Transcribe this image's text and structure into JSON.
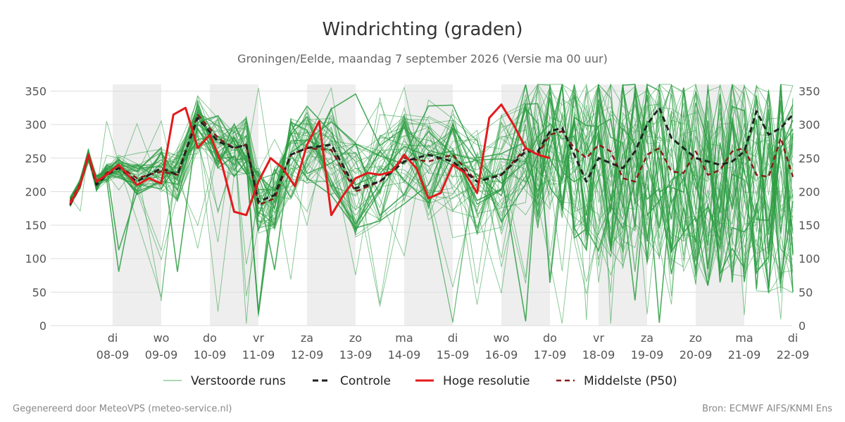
{
  "chart_data": {
    "type": "line",
    "title": "Windrichting (graden)",
    "subtitle": "Groningen/Eelde, maandag  7 september 2026 (Versie ma 00 uur)",
    "ylim": [
      0,
      360
    ],
    "y_ticks": [
      0,
      50,
      100,
      150,
      200,
      250,
      300,
      350
    ],
    "x_range_days": [
      -0.87,
      14.0
    ],
    "x_ticks": [
      {
        "day": "di",
        "date": "08-09"
      },
      {
        "day": "wo",
        "date": "09-09"
      },
      {
        "day": "do",
        "date": "10-09"
      },
      {
        "day": "vr",
        "date": "11-09"
      },
      {
        "day": "za",
        "date": "12-09"
      },
      {
        "day": "zo",
        "date": "13-09"
      },
      {
        "day": "ma",
        "date": "14-09"
      },
      {
        "day": "di",
        "date": "15-09"
      },
      {
        "day": "wo",
        "date": "16-09"
      },
      {
        "day": "do",
        "date": "17-09"
      },
      {
        "day": "vr",
        "date": "18-09"
      },
      {
        "day": "za",
        "date": "19-09"
      },
      {
        "day": "zo",
        "date": "20-09"
      },
      {
        "day": "ma",
        "date": "21-09"
      },
      {
        "day": "di",
        "date": "22-09"
      }
    ],
    "weekend_shading": true,
    "shaded_days": [
      0,
      2,
      4,
      6,
      8,
      10,
      12
    ],
    "grid": true,
    "legend_position": "bottom",
    "colors": {
      "ensemble": "#2e9e44",
      "control": "#222222",
      "hires": "#e31a1c",
      "p50": "#8b1a1a",
      "shade": "#eeeeee",
      "grid": "#dddddd"
    },
    "series": [
      {
        "name": "Controle",
        "style": "dashed",
        "x": [
          -0.875,
          -0.667,
          -0.5,
          -0.333,
          -0.125,
          0.125,
          0.5,
          1.0,
          1.333,
          1.75,
          2.167,
          2.5,
          2.75,
          3.0,
          3.333,
          3.667,
          4.0,
          4.5,
          5.0,
          5.5,
          6.0,
          6.5,
          7.0,
          7.5,
          8.0,
          8.5,
          8.75,
          9.0,
          9.25,
          9.5,
          9.75,
          10.0,
          10.5,
          10.75,
          11.0,
          11.25,
          11.5,
          12.0,
          12.5,
          12.75,
          13.0,
          13.25,
          13.5,
          13.75,
          14.0
        ],
        "y": [
          180,
          210,
          255,
          210,
          225,
          235,
          215,
          235,
          225,
          310,
          275,
          265,
          270,
          185,
          195,
          255,
          265,
          270,
          205,
          215,
          245,
          255,
          245,
          215,
          225,
          260,
          260,
          290,
          295,
          255,
          215,
          250,
          235,
          260,
          300,
          325,
          280,
          250,
          240,
          245,
          260,
          320,
          285,
          295,
          315
        ]
      },
      {
        "name": "Hoge resolutie",
        "style": "solid",
        "x": [
          -0.875,
          -0.667,
          -0.5,
          -0.333,
          -0.125,
          0.125,
          0.5,
          0.75,
          1.0,
          1.25,
          1.5,
          1.75,
          2.0,
          2.25,
          2.5,
          2.75,
          3.0,
          3.25,
          3.5,
          3.75,
          4.0,
          4.25,
          4.5,
          4.75,
          5.0,
          5.25,
          5.5,
          5.75,
          6.0,
          6.25,
          6.5,
          6.75,
          7.0,
          7.25,
          7.5,
          7.75,
          8.0,
          8.25,
          8.5,
          8.75,
          9.0
        ],
        "y": [
          182,
          210,
          255,
          215,
          225,
          240,
          210,
          220,
          212,
          315,
          325,
          265,
          285,
          240,
          170,
          165,
          215,
          250,
          235,
          208,
          270,
          305,
          165,
          195,
          220,
          228,
          225,
          230,
          255,
          235,
          190,
          198,
          240,
          228,
          198,
          310,
          330,
          300,
          265,
          255,
          250
        ]
      },
      {
        "name": "Middelste (P50)",
        "style": "dashed",
        "x": [
          -0.875,
          -0.667,
          -0.5,
          -0.333,
          -0.125,
          0.125,
          0.5,
          1.0,
          1.333,
          1.75,
          2.167,
          2.5,
          2.75,
          3.0,
          3.333,
          3.667,
          4.0,
          4.5,
          5.0,
          5.5,
          6.0,
          6.5,
          7.0,
          7.5,
          8.0,
          8.5,
          8.75,
          9.0,
          9.25,
          9.5,
          9.75,
          10.0,
          10.25,
          10.5,
          10.75,
          11.0,
          11.25,
          11.5,
          11.75,
          12.0,
          12.25,
          12.5,
          12.75,
          13.0,
          13.25,
          13.5,
          13.75,
          14.0
        ],
        "y": [
          185,
          212,
          255,
          212,
          228,
          238,
          220,
          230,
          225,
          315,
          280,
          265,
          270,
          180,
          190,
          255,
          265,
          262,
          200,
          215,
          250,
          245,
          255,
          215,
          225,
          265,
          255,
          285,
          290,
          265,
          250,
          270,
          260,
          220,
          215,
          255,
          265,
          230,
          228,
          260,
          225,
          232,
          260,
          265,
          225,
          222,
          280,
          222
        ]
      },
      {
        "name": "Verstoorde runs",
        "style": "thin",
        "members": 50,
        "x": [
          -0.875,
          -0.667,
          -0.5,
          -0.333,
          -0.125,
          0.125,
          0.5,
          1.0,
          1.333,
          1.75,
          2.167,
          2.5,
          2.75,
          3.0,
          3.333,
          3.667,
          4.0,
          4.5,
          5.0,
          5.5,
          6.0,
          6.5,
          7.0,
          7.5,
          8.0,
          8.5,
          8.75,
          9.0,
          9.25,
          9.5,
          9.75,
          10.0,
          10.25,
          10.5,
          10.75,
          11.0,
          11.25,
          11.5,
          11.75,
          12.0,
          12.25,
          12.5,
          12.75,
          13.0,
          13.25,
          13.5,
          13.75,
          14.0
        ],
        "base": [
          185,
          212,
          255,
          212,
          228,
          238,
          220,
          232,
          225,
          300,
          275,
          262,
          268,
          185,
          192,
          250,
          268,
          260,
          205,
          218,
          250,
          245,
          250,
          215,
          225,
          265,
          255,
          285,
          280,
          255,
          240,
          250,
          240,
          230,
          225,
          240,
          240,
          225,
          220,
          220,
          215,
          215,
          220,
          210,
          210,
          205,
          210,
          205
        ],
        "spread": [
          8,
          8,
          10,
          12,
          14,
          18,
          25,
          35,
          40,
          45,
          40,
          40,
          45,
          50,
          50,
          60,
          60,
          70,
          70,
          70,
          70,
          70,
          80,
          80,
          90,
          100,
          110,
          120,
          120,
          130,
          130,
          140,
          140,
          150,
          150,
          150,
          150,
          150,
          150,
          160,
          160,
          160,
          160,
          160,
          160,
          160,
          160,
          160
        ]
      }
    ]
  },
  "legend": {
    "items": [
      {
        "label": "Verstoorde runs",
        "key": "ensemble"
      },
      {
        "label": "Controle",
        "key": "control"
      },
      {
        "label": "Hoge resolutie",
        "key": "hires"
      },
      {
        "label": "Middelste (P50)",
        "key": "p50"
      }
    ]
  },
  "footer": {
    "left": "Gegenereerd door MeteoVPS (meteo-service.nl)",
    "right": "Bron: ECMWF AIFS/KNMI Ens"
  }
}
